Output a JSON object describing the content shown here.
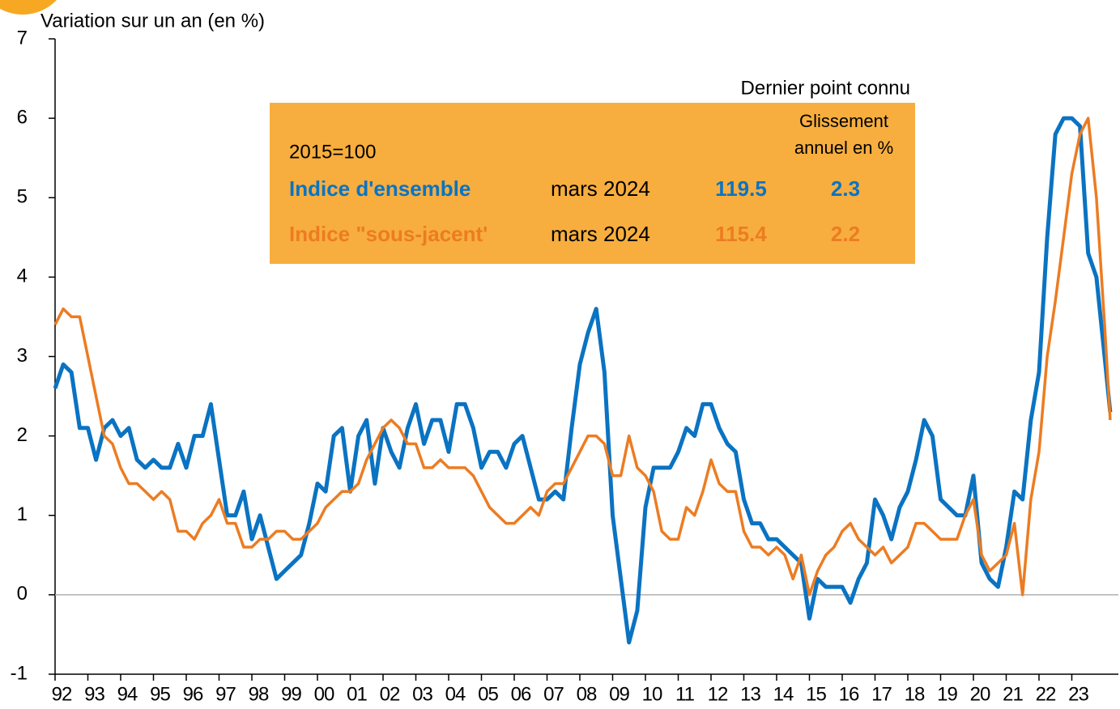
{
  "chart_data": {
    "type": "line",
    "y_axis_label": "Variation sur un an (en %)",
    "box": {
      "header": "Dernier point connu",
      "base": "2015=100",
      "col_header": [
        "Glissement",
        "annuel en %"
      ],
      "rows": [
        {
          "date": "mars 2024",
          "index": 119.5,
          "yoy": 2.3
        },
        {
          "date": "mars 2024",
          "index": 115.4,
          "yoy": 2.2
        }
      ]
    },
    "xlim": [
      1992,
      2024.42
    ],
    "ylim": [
      -1,
      7
    ],
    "yticks": [
      -1,
      0,
      1,
      2,
      3,
      4,
      5,
      6,
      7
    ],
    "xticks": [
      {
        "value": 1992,
        "label": "92"
      },
      {
        "value": 1993,
        "label": "93"
      },
      {
        "value": 1994,
        "label": "94"
      },
      {
        "value": 1995,
        "label": "95"
      },
      {
        "value": 1996,
        "label": "96"
      },
      {
        "value": 1997,
        "label": "97"
      },
      {
        "value": 1998,
        "label": "98"
      },
      {
        "value": 1999,
        "label": "99"
      },
      {
        "value": 2000,
        "label": "00"
      },
      {
        "value": 2001,
        "label": "01"
      },
      {
        "value": 2002,
        "label": "02"
      },
      {
        "value": 2003,
        "label": "03"
      },
      {
        "value": 2004,
        "label": "04"
      },
      {
        "value": 2005,
        "label": "05"
      },
      {
        "value": 2006,
        "label": "06"
      },
      {
        "value": 2007,
        "label": "07"
      },
      {
        "value": 2008,
        "label": "08"
      },
      {
        "value": 2009,
        "label": "09"
      },
      {
        "value": 2010,
        "label": "10"
      },
      {
        "value": 2011,
        "label": "11"
      },
      {
        "value": 2012,
        "label": "12"
      },
      {
        "value": 2013,
        "label": "13"
      },
      {
        "value": 2014,
        "label": "14"
      },
      {
        "value": 2015,
        "label": "15"
      },
      {
        "value": 2016,
        "label": "16"
      },
      {
        "value": 2017,
        "label": "17"
      },
      {
        "value": 2018,
        "label": "18"
      },
      {
        "value": 2019,
        "label": "19"
      },
      {
        "value": 2020,
        "label": "20"
      },
      {
        "value": 2021,
        "label": "21"
      },
      {
        "value": 2022,
        "label": "22"
      },
      {
        "value": 2023,
        "label": "23"
      }
    ],
    "x": [
      1992,
      1992.25,
      1992.5,
      1992.75,
      1993,
      1993.25,
      1993.5,
      1993.75,
      1994,
      1994.25,
      1994.5,
      1994.75,
      1995,
      1995.25,
      1995.5,
      1995.75,
      1996,
      1996.25,
      1996.5,
      1996.75,
      1997,
      1997.25,
      1997.5,
      1997.75,
      1998,
      1998.25,
      1998.5,
      1998.75,
      1999,
      1999.25,
      1999.5,
      1999.75,
      2000,
      2000.25,
      2000.5,
      2000.75,
      2001,
      2001.25,
      2001.5,
      2001.75,
      2002,
      2002.25,
      2002.5,
      2002.75,
      2003,
      2003.25,
      2003.5,
      2003.75,
      2004,
      2004.25,
      2004.5,
      2004.75,
      2005,
      2005.25,
      2005.5,
      2005.75,
      2006,
      2006.25,
      2006.5,
      2006.75,
      2007,
      2007.25,
      2007.5,
      2007.75,
      2008,
      2008.25,
      2008.5,
      2008.75,
      2009,
      2009.25,
      2009.5,
      2009.75,
      2010,
      2010.25,
      2010.5,
      2010.75,
      2011,
      2011.25,
      2011.5,
      2011.75,
      2012,
      2012.25,
      2012.5,
      2012.75,
      2013,
      2013.25,
      2013.5,
      2013.75,
      2014,
      2014.25,
      2014.5,
      2014.75,
      2015,
      2015.25,
      2015.5,
      2015.75,
      2016,
      2016.25,
      2016.5,
      2016.75,
      2017,
      2017.25,
      2017.5,
      2017.75,
      2018,
      2018.25,
      2018.5,
      2018.75,
      2019,
      2019.25,
      2019.5,
      2019.75,
      2020,
      2020.25,
      2020.5,
      2020.75,
      2021,
      2021.25,
      2021.5,
      2021.75,
      2022,
      2022.25,
      2022.5,
      2022.75,
      2023,
      2023.25,
      2023.5,
      2023.75,
      2024,
      2024.17
    ],
    "series": [
      {
        "name": "Indice d'ensemble",
        "color": "#0a73c2",
        "values": [
          2.6,
          2.9,
          2.8,
          2.1,
          2.1,
          1.7,
          2.1,
          2.2,
          2.0,
          2.1,
          1.7,
          1.6,
          1.7,
          1.6,
          1.6,
          1.9,
          1.6,
          2.0,
          2.0,
          2.4,
          1.7,
          1.0,
          1.0,
          1.3,
          0.7,
          1.0,
          0.6,
          0.2,
          0.3,
          0.4,
          0.5,
          0.9,
          1.4,
          1.3,
          2.0,
          2.1,
          1.3,
          2.0,
          2.2,
          1.4,
          2.1,
          1.8,
          1.6,
          2.1,
          2.4,
          1.9,
          2.2,
          2.2,
          1.8,
          2.4,
          2.4,
          2.1,
          1.6,
          1.8,
          1.8,
          1.6,
          1.9,
          2.0,
          1.6,
          1.2,
          1.2,
          1.3,
          1.2,
          2.1,
          2.9,
          3.3,
          3.6,
          2.8,
          1.0,
          0.2,
          -0.6,
          -0.2,
          1.1,
          1.6,
          1.6,
          1.6,
          1.8,
          2.1,
          2.0,
          2.4,
          2.4,
          2.1,
          1.9,
          1.8,
          1.2,
          0.9,
          0.9,
          0.7,
          0.7,
          0.6,
          0.5,
          0.4,
          -0.3,
          0.2,
          0.1,
          0.1,
          0.1,
          -0.1,
          0.2,
          0.4,
          1.2,
          1.0,
          0.7,
          1.1,
          1.3,
          1.7,
          2.2,
          2.0,
          1.2,
          1.1,
          1.0,
          1.0,
          1.5,
          0.4,
          0.2,
          0.1,
          0.6,
          1.3,
          1.2,
          2.2,
          2.8,
          4.5,
          5.8,
          6.0,
          6.0,
          5.9,
          4.3,
          4.0,
          3.0,
          2.3
        ]
      },
      {
        "name": "Indice \"sous-jacent'",
        "color": "#ec7c22",
        "values": [
          3.4,
          3.6,
          3.5,
          3.5,
          3.0,
          2.5,
          2.0,
          1.9,
          1.6,
          1.4,
          1.4,
          1.3,
          1.2,
          1.3,
          1.2,
          0.8,
          0.8,
          0.7,
          0.9,
          1.0,
          1.2,
          0.9,
          0.9,
          0.6,
          0.6,
          0.7,
          0.7,
          0.8,
          0.8,
          0.7,
          0.7,
          0.8,
          0.9,
          1.1,
          1.2,
          1.3,
          1.3,
          1.4,
          1.7,
          1.9,
          2.1,
          2.2,
          2.1,
          1.9,
          1.9,
          1.6,
          1.6,
          1.7,
          1.6,
          1.6,
          1.6,
          1.5,
          1.3,
          1.1,
          1.0,
          0.9,
          0.9,
          1.0,
          1.1,
          1.0,
          1.3,
          1.4,
          1.4,
          1.6,
          1.8,
          2.0,
          2.0,
          1.9,
          1.5,
          1.5,
          2.0,
          1.6,
          1.5,
          1.3,
          0.8,
          0.7,
          0.7,
          1.1,
          1.0,
          1.3,
          1.7,
          1.4,
          1.3,
          1.3,
          0.8,
          0.6,
          0.6,
          0.5,
          0.6,
          0.5,
          0.2,
          0.5,
          0.0,
          0.3,
          0.5,
          0.6,
          0.8,
          0.9,
          0.7,
          0.6,
          0.5,
          0.6,
          0.4,
          0.5,
          0.6,
          0.9,
          0.9,
          0.8,
          0.7,
          0.7,
          0.7,
          1.0,
          1.2,
          0.5,
          0.3,
          0.4,
          0.5,
          0.9,
          0.0,
          1.2,
          1.8,
          3.0,
          3.7,
          4.5,
          5.3,
          5.8,
          6.0,
          5.0,
          3.4,
          2.2
        ]
      }
    ]
  }
}
